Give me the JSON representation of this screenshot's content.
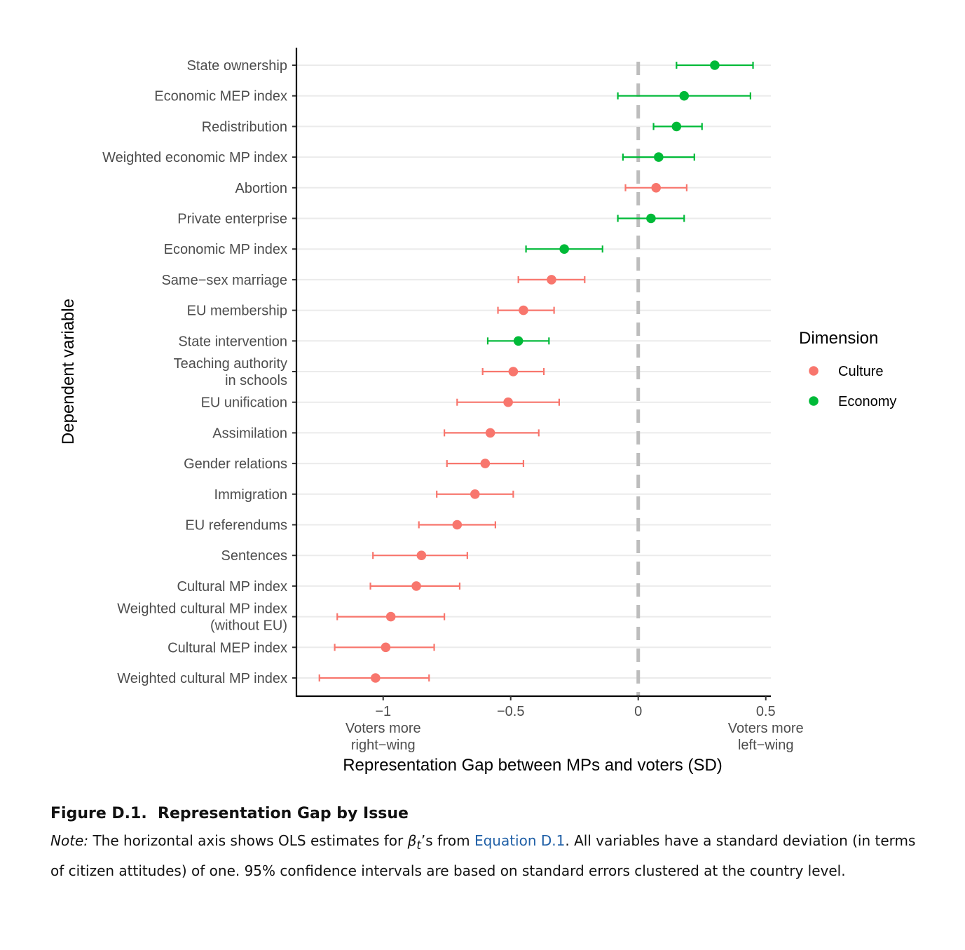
{
  "chart_data": {
    "type": "scatter",
    "subtype": "dot-and-whisker",
    "xlabel": "Representation Gap between MPs and voters (SD)",
    "ylabel": "Dependent variable",
    "xlim": [
      -1.34,
      0.52
    ],
    "xticks": [
      -1,
      -0.5,
      0,
      0.5
    ],
    "xtick_labels": [
      "−1",
      "−0.5",
      "0",
      "0.5"
    ],
    "x_annotations": [
      {
        "x": -1,
        "lines": [
          "Voters more",
          "right−wing"
        ]
      },
      {
        "x": 0.5,
        "lines": [
          "Voters more",
          "left−wing"
        ]
      }
    ],
    "reference_line": {
      "x": 0,
      "style": "dashed",
      "color": "#bdbdbd"
    },
    "grid": "horizontal",
    "legend": {
      "title": "Dimension",
      "position": "right",
      "entries": [
        {
          "name": "Culture",
          "color": "#f8766d"
        },
        {
          "name": "Economy",
          "color": "#00ba38"
        }
      ]
    },
    "series": [
      {
        "name": "Culture",
        "color": "#f8766d"
      },
      {
        "name": "Economy",
        "color": "#00ba38"
      }
    ],
    "items": [
      {
        "lines": [
          "State ownership"
        ],
        "dimension": "Economy",
        "estimate": 0.3,
        "ci": [
          0.15,
          0.45
        ]
      },
      {
        "lines": [
          "Economic MEP index"
        ],
        "dimension": "Economy",
        "estimate": 0.18,
        "ci": [
          -0.08,
          0.44
        ]
      },
      {
        "lines": [
          "Redistribution"
        ],
        "dimension": "Economy",
        "estimate": 0.15,
        "ci": [
          0.06,
          0.25
        ]
      },
      {
        "lines": [
          "Weighted economic MP index"
        ],
        "dimension": "Economy",
        "estimate": 0.08,
        "ci": [
          -0.06,
          0.22
        ]
      },
      {
        "lines": [
          "Abortion"
        ],
        "dimension": "Culture",
        "estimate": 0.07,
        "ci": [
          -0.05,
          0.19
        ]
      },
      {
        "lines": [
          "Private enterprise"
        ],
        "dimension": "Economy",
        "estimate": 0.05,
        "ci": [
          -0.08,
          0.18
        ]
      },
      {
        "lines": [
          "Economic MP index"
        ],
        "dimension": "Economy",
        "estimate": -0.29,
        "ci": [
          -0.44,
          -0.14
        ]
      },
      {
        "lines": [
          "Same−sex marriage"
        ],
        "dimension": "Culture",
        "estimate": -0.34,
        "ci": [
          -0.47,
          -0.21
        ]
      },
      {
        "lines": [
          "EU membership"
        ],
        "dimension": "Culture",
        "estimate": -0.45,
        "ci": [
          -0.55,
          -0.33
        ]
      },
      {
        "lines": [
          "State intervention"
        ],
        "dimension": "Economy",
        "estimate": -0.47,
        "ci": [
          -0.59,
          -0.35
        ]
      },
      {
        "lines": [
          "Teaching authority",
          "in schools"
        ],
        "dimension": "Culture",
        "estimate": -0.49,
        "ci": [
          -0.61,
          -0.37
        ]
      },
      {
        "lines": [
          "EU unification"
        ],
        "dimension": "Culture",
        "estimate": -0.51,
        "ci": [
          -0.71,
          -0.31
        ]
      },
      {
        "lines": [
          "Assimilation"
        ],
        "dimension": "Culture",
        "estimate": -0.58,
        "ci": [
          -0.76,
          -0.39
        ]
      },
      {
        "lines": [
          "Gender relations"
        ],
        "dimension": "Culture",
        "estimate": -0.6,
        "ci": [
          -0.75,
          -0.45
        ]
      },
      {
        "lines": [
          "Immigration"
        ],
        "dimension": "Culture",
        "estimate": -0.64,
        "ci": [
          -0.79,
          -0.49
        ]
      },
      {
        "lines": [
          "EU referendums"
        ],
        "dimension": "Culture",
        "estimate": -0.71,
        "ci": [
          -0.86,
          -0.56
        ]
      },
      {
        "lines": [
          "Sentences"
        ],
        "dimension": "Culture",
        "estimate": -0.85,
        "ci": [
          -1.04,
          -0.67
        ]
      },
      {
        "lines": [
          "Cultural MP index"
        ],
        "dimension": "Culture",
        "estimate": -0.87,
        "ci": [
          -1.05,
          -0.7
        ]
      },
      {
        "lines": [
          "Weighted cultural MP index",
          "(without EU)"
        ],
        "dimension": "Culture",
        "estimate": -0.97,
        "ci": [
          -1.18,
          -0.76
        ]
      },
      {
        "lines": [
          "Cultural MEP index"
        ],
        "dimension": "Culture",
        "estimate": -0.99,
        "ci": [
          -1.19,
          -0.8
        ]
      },
      {
        "lines": [
          "Weighted cultural MP index"
        ],
        "dimension": "Culture",
        "estimate": -1.03,
        "ci": [
          -1.25,
          -0.82
        ]
      }
    ]
  },
  "caption": {
    "figure_label": "Figure D.1.",
    "figure_title": "Representation Gap by Issue",
    "note_label": "Note:",
    "note_part1": "The horizontal axis shows OLS estimates for",
    "beta_symbol": "β",
    "beta_subscript": "t",
    "note_part2": "’s from",
    "equation_link": "Equation D.1",
    "note_part3": ". All variables have a standard deviation (in terms of citizen attitudes) of one. 95% confidence intervals are based on standard errors clustered at the country level."
  }
}
